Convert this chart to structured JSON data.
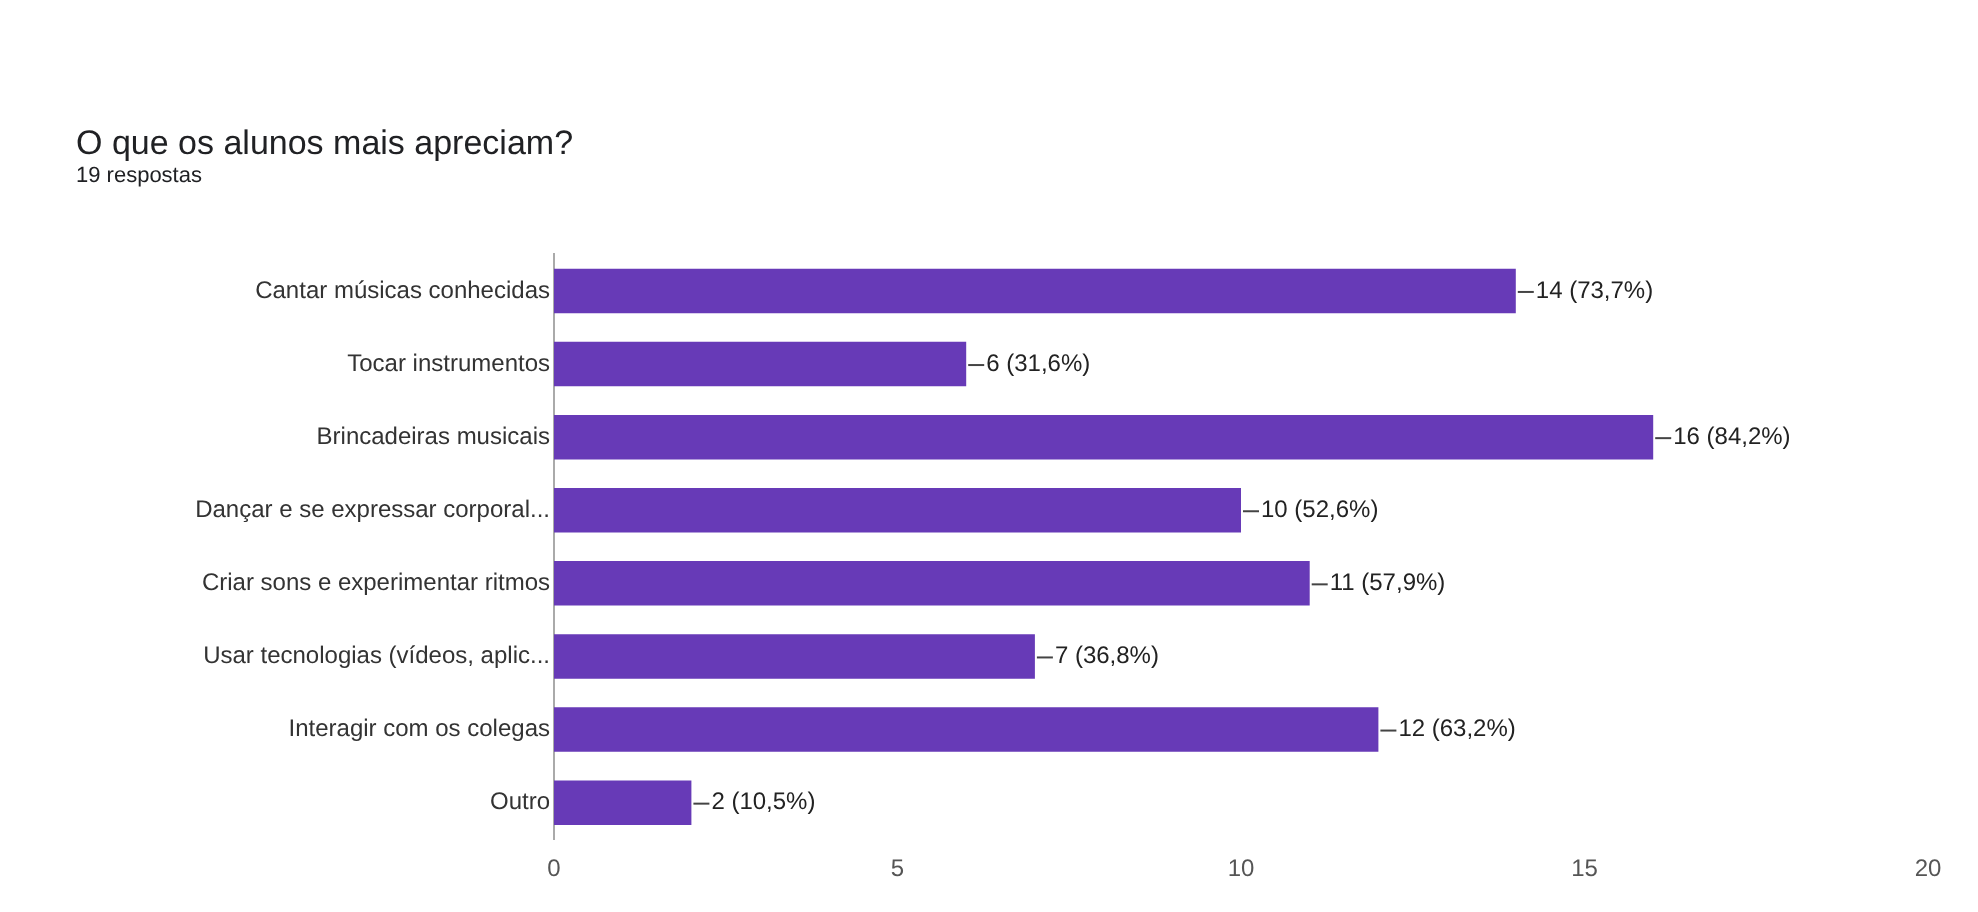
{
  "chart_data": {
    "type": "bar",
    "orientation": "horizontal",
    "title": "O que os alunos mais apreciam?",
    "subtitle": "19 respostas",
    "categories": [
      "Cantar músicas conhecidas",
      "Tocar instrumentos",
      "Brincadeiras musicais",
      "Dançar e se expressar corporal...",
      "Criar sons e experimentar ritmos",
      "Usar tecnologias (vídeos, aplic...",
      "Interagir com os colegas",
      "Outro"
    ],
    "values": [
      14,
      6,
      16,
      10,
      11,
      7,
      12,
      2
    ],
    "value_labels": [
      "14 (73,7%)",
      "6 (31,6%)",
      "16 (84,2%)",
      "10 (52,6%)",
      "11 (57,9%)",
      "7 (36,8%)",
      "12 (63,2%)",
      "2 (10,5%)"
    ],
    "color": "#673ab7",
    "xlim": [
      0,
      20
    ],
    "xticks": [
      0,
      5,
      10,
      15,
      20
    ],
    "grid": false,
    "legend": false
  }
}
